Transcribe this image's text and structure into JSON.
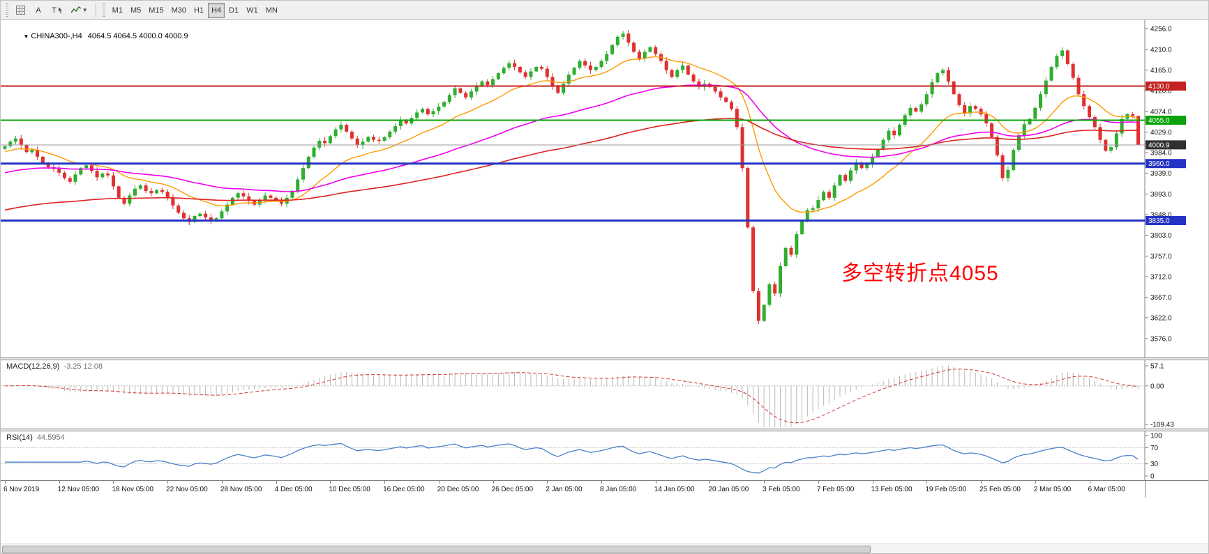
{
  "toolbar": {
    "tools": {
      "text_tool": "A",
      "label_tool": "T"
    },
    "timeframes": [
      "M1",
      "M5",
      "M15",
      "M30",
      "H1",
      "H4",
      "D1",
      "W1",
      "MN"
    ],
    "selected_timeframe": "H4"
  },
  "header": {
    "symbol": "CHINA300-,H4",
    "ohlc": "4064.5 4064.5 4000.0 4000.9"
  },
  "annotation": {
    "text": "多空转折点4055",
    "color": "#ff0000"
  },
  "macd": {
    "label": "MACD(12,26,9)",
    "values": "-3.25 12.08",
    "scale": [
      "57.1",
      "0.00",
      "-109.43"
    ],
    "scale_values": [
      57.1,
      0,
      -109.43
    ]
  },
  "rsi": {
    "label": "RSI(14)",
    "value": "44.5954",
    "scale": [
      "100",
      "70",
      "30",
      "0"
    ],
    "scale_values": [
      100,
      70,
      30,
      0
    ],
    "levels": [
      70,
      30
    ]
  },
  "chart_data": {
    "type": "candlestick",
    "symbol": "CHINA300-",
    "timeframe": "H4",
    "title": "CHINA300-,H4",
    "y_ticks": [
      4256.0,
      4210.0,
      4165.0,
      4120.0,
      4074.0,
      4029.0,
      3984.0,
      3939.0,
      3893.0,
      3848.0,
      3803.0,
      3757.0,
      3712.0,
      3667.0,
      3622.0,
      3576.0
    ],
    "x_labels": [
      "6 Nov 2019",
      "12 Nov 05:00",
      "18 Nov 05:00",
      "22 Nov 05:00",
      "28 Nov 05:00",
      "4 Dec 05:00",
      "10 Dec 05:00",
      "16 Dec 05:00",
      "20 Dec 05:00",
      "26 Dec 05:00",
      "2 Jan 05:00",
      "8 Jan 05:00",
      "14 Jan 05:00",
      "20 Jan 05:00",
      "3 Feb 05:00",
      "7 Feb 05:00",
      "13 Feb 05:00",
      "19 Feb 05:00",
      "25 Feb 05:00",
      "2 Mar 05:00",
      "6 Mar 05:00"
    ],
    "open_first": 3992,
    "closes": [
      3998,
      4008,
      4015,
      4000,
      3985,
      3990,
      3975,
      3960,
      3952,
      3948,
      3940,
      3928,
      3920,
      3936,
      3950,
      3956,
      3944,
      3930,
      3938,
      3934,
      3910,
      3885,
      3872,
      3890,
      3905,
      3912,
      3900,
      3895,
      3902,
      3898,
      3885,
      3868,
      3852,
      3840,
      3832,
      3845,
      3850,
      3842,
      3835,
      3840,
      3855,
      3870,
      3885,
      3895,
      3888,
      3878,
      3870,
      3880,
      3890,
      3885,
      3880,
      3872,
      3885,
      3900,
      3925,
      3950,
      3975,
      3995,
      4010,
      4005,
      4020,
      4035,
      4045,
      4030,
      4015,
      4000,
      4008,
      4018,
      4012,
      4010,
      4018,
      4030,
      4042,
      4055,
      4048,
      4060,
      4072,
      4080,
      4068,
      4075,
      4085,
      4095,
      4110,
      4125,
      4115,
      4105,
      4118,
      4130,
      4140,
      4132,
      4145,
      4158,
      4170,
      4180,
      4172,
      4160,
      4150,
      4162,
      4172,
      4168,
      4150,
      4130,
      4115,
      4135,
      4155,
      4170,
      4185,
      4175,
      4165,
      4172,
      4185,
      4200,
      4220,
      4238,
      4245,
      4225,
      4205,
      4190,
      4205,
      4215,
      4200,
      4185,
      4165,
      4150,
      4165,
      4175,
      4155,
      4140,
      4128,
      4135,
      4128,
      4118,
      4105,
      4095,
      4080,
      4040,
      3950,
      3820,
      3680,
      3615,
      3650,
      3695,
      3675,
      3735,
      3775,
      3760,
      3805,
      3835,
      3858,
      3862,
      3880,
      3898,
      3885,
      3912,
      3935,
      3922,
      3945,
      3962,
      3950,
      3958,
      3975,
      3992,
      4012,
      4032,
      4022,
      4045,
      4066,
      4082,
      4074,
      4090,
      4112,
      4138,
      4158,
      4165,
      4140,
      4112,
      4088,
      4070,
      4086,
      4080,
      4068,
      4048,
      4018,
      3978,
      3928,
      3946,
      3990,
      4022,
      4046,
      4058,
      4082,
      4112,
      4142,
      4172,
      4196,
      4208,
      4178,
      4148,
      4112,
      4086,
      4062,
      4040,
      4012,
      3988,
      3996,
      4026,
      4058,
      4068,
      4064.5,
      4000.9
    ],
    "last_candle": [
      4064.5,
      4064.5,
      4000.0,
      4000.9
    ],
    "h_lines": [
      {
        "price": 4130.0,
        "label": "4130.0",
        "color": "#c32222",
        "width": 2
      },
      {
        "price": 4055.0,
        "label": "4055.0",
        "color": "#0aa30a",
        "width": 2
      },
      {
        "price": 3960.0,
        "label": "3960.0",
        "color": "#2433c4",
        "width": 3
      },
      {
        "price": 3835.0,
        "label": "3835.0",
        "color": "#2433c4",
        "width": 3
      }
    ],
    "current_price": {
      "value": 4000.9,
      "label": "4000.9",
      "line_color": "#9a9a9a",
      "tag_bg": "#303030"
    },
    "ma": [
      {
        "name": "fast-ma",
        "period": 18,
        "seed": 3985,
        "color": "#ff9900",
        "width": 1.4
      },
      {
        "name": "medium-ma",
        "period": 60,
        "seed": 3938,
        "color": "#ee00ee",
        "width": 1.6
      },
      {
        "name": "slow-ma",
        "period": 130,
        "seed": 3856,
        "color": "#dd2222",
        "width": 1.6
      }
    ],
    "colors": {
      "up": "#2fae2f",
      "down": "#e03030",
      "macd_hist": "#b8b8b8",
      "macd_signal": "#d23333",
      "rsi_line": "#4a7fc9",
      "axis_line": "#808080"
    }
  }
}
